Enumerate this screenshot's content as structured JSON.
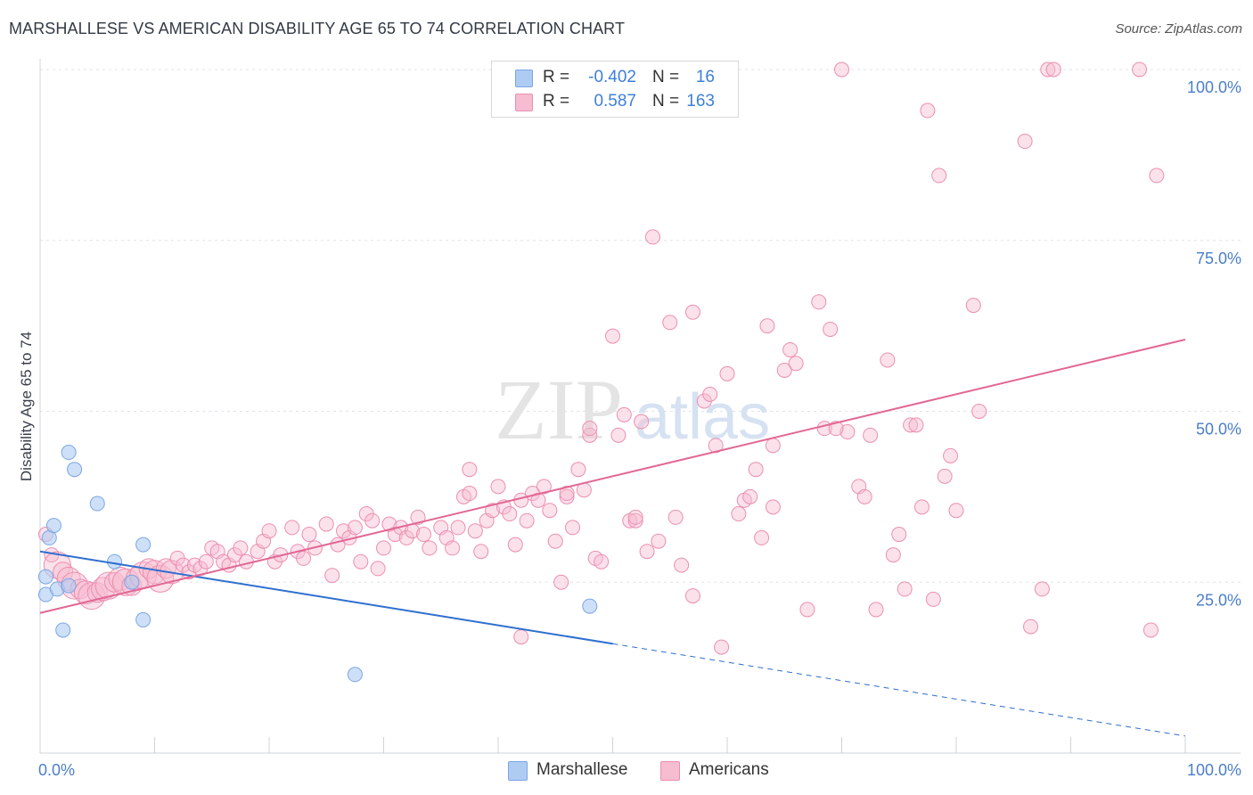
{
  "header": {
    "title": "MARSHALLESE VS AMERICAN DISABILITY AGE 65 TO 74 CORRELATION CHART",
    "source": "Source: ZipAtlas.com"
  },
  "watermark": {
    "zip": "ZIP",
    "atlas": "atlas"
  },
  "colors": {
    "marshallese_fill": "#aecbf2",
    "marshallese_stroke": "#7aa6e6",
    "marshallese_line": "#2f6fce",
    "americans_fill": "#f6bcd0",
    "americans_stroke": "#eb8fb0",
    "americans_line": "#e26795",
    "tick_label": "#4a7ec9",
    "grid": "#dfe3ea"
  },
  "legend": {
    "rows": [
      {
        "series": "Marshallese",
        "r_label": "R =",
        "r_value": "-0.402",
        "n_label": "N =",
        "n_value": "16"
      },
      {
        "series": "Americans",
        "r_label": "R =",
        "r_value": "0.587",
        "n_label": "N =",
        "n_value": "163"
      }
    ]
  },
  "bottom_legend": [
    "Marshallese",
    "Americans"
  ],
  "chart_data": {
    "type": "scatter",
    "title": "MARSHALLESE VS AMERICAN DISABILITY AGE 65 TO 74 CORRELATION CHART",
    "xlabel": "",
    "ylabel": "Disability Age 65 to 74",
    "xlim": [
      0,
      100
    ],
    "ylim": [
      0,
      100
    ],
    "x_tick_labels": [
      "0.0%",
      "100.0%"
    ],
    "y_tick_labels": [
      "25.0%",
      "50.0%",
      "75.0%",
      "100.0%"
    ],
    "y_ticks": [
      25,
      50,
      75,
      100
    ],
    "grid": true,
    "series": [
      {
        "name": "Marshallese",
        "r": -0.402,
        "n": 16,
        "trend": {
          "x0": 0,
          "y0": 29.5,
          "x1": 50,
          "y1": 16.0,
          "dashed_to_x": 100,
          "dashed_to_y": 2.5
        },
        "points": [
          [
            0.5,
            25.8
          ],
          [
            0.5,
            23.2
          ],
          [
            0.8,
            31.5
          ],
          [
            1.2,
            33.3
          ],
          [
            1.5,
            24.0
          ],
          [
            2.0,
            18.0
          ],
          [
            2.5,
            44.0
          ],
          [
            3.0,
            41.5
          ],
          [
            5.0,
            36.5
          ],
          [
            6.5,
            28.0
          ],
          [
            9.0,
            30.5
          ],
          [
            9.0,
            19.5
          ],
          [
            2.5,
            24.5
          ],
          [
            8.0,
            25.0
          ],
          [
            27.5,
            11.5
          ],
          [
            48.0,
            21.5
          ]
        ]
      },
      {
        "name": "Americans",
        "r": 0.587,
        "n": 163,
        "trend": {
          "x0": 0,
          "y0": 20.5,
          "x1": 100,
          "y1": 60.5
        },
        "points": [
          [
            0.5,
            32.0
          ],
          [
            1.0,
            29.0
          ],
          [
            1.5,
            27.5
          ],
          [
            2.0,
            26.5
          ],
          [
            2.5,
            25.5
          ],
          [
            3.0,
            24.5
          ],
          [
            3.5,
            24.0
          ],
          [
            4.0,
            23.5
          ],
          [
            4.5,
            23.0
          ],
          [
            5.0,
            23.5
          ],
          [
            5.5,
            24.0
          ],
          [
            6.0,
            24.5
          ],
          [
            6.5,
            25.0
          ],
          [
            7.0,
            25.5
          ],
          [
            7.5,
            25.0
          ],
          [
            8.0,
            24.5
          ],
          [
            8.5,
            25.5
          ],
          [
            9.0,
            26.0
          ],
          [
            9.5,
            27.0
          ],
          [
            10.0,
            26.5
          ],
          [
            10.5,
            25.5
          ],
          [
            11.0,
            27.0
          ],
          [
            11.5,
            26.5
          ],
          [
            12.0,
            28.5
          ],
          [
            12.5,
            27.5
          ],
          [
            13.0,
            26.5
          ],
          [
            13.5,
            27.5
          ],
          [
            14.0,
            27.0
          ],
          [
            14.5,
            28.0
          ],
          [
            15.0,
            30.0
          ],
          [
            15.5,
            29.5
          ],
          [
            16.0,
            28.0
          ],
          [
            16.5,
            27.5
          ],
          [
            17.0,
            29.0
          ],
          [
            17.5,
            30.0
          ],
          [
            18.0,
            28.0
          ],
          [
            19.0,
            29.5
          ],
          [
            19.5,
            31.0
          ],
          [
            20.0,
            32.5
          ],
          [
            20.5,
            28.0
          ],
          [
            21.0,
            29.0
          ],
          [
            22.0,
            33.0
          ],
          [
            22.5,
            29.5
          ],
          [
            23.0,
            28.5
          ],
          [
            23.5,
            32.0
          ],
          [
            24.0,
            30.0
          ],
          [
            25.0,
            33.5
          ],
          [
            25.5,
            26.0
          ],
          [
            26.0,
            30.5
          ],
          [
            26.5,
            32.5
          ],
          [
            27.0,
            31.5
          ],
          [
            27.5,
            33.0
          ],
          [
            28.0,
            28.0
          ],
          [
            28.5,
            35.0
          ],
          [
            29.0,
            34.0
          ],
          [
            29.5,
            27.0
          ],
          [
            30.0,
            30.0
          ],
          [
            30.5,
            33.5
          ],
          [
            31.0,
            32.0
          ],
          [
            31.5,
            33.0
          ],
          [
            32.0,
            31.5
          ],
          [
            32.5,
            32.5
          ],
          [
            33.0,
            34.5
          ],
          [
            33.5,
            32.0
          ],
          [
            34.0,
            30.0
          ],
          [
            35.0,
            33.0
          ],
          [
            35.5,
            31.5
          ],
          [
            36.0,
            30.0
          ],
          [
            36.5,
            33.0
          ],
          [
            37.0,
            37.5
          ],
          [
            37.5,
            38.0
          ],
          [
            38.0,
            32.5
          ],
          [
            38.5,
            29.5
          ],
          [
            39.0,
            34.0
          ],
          [
            39.5,
            35.5
          ],
          [
            40.0,
            39.0
          ],
          [
            40.5,
            36.0
          ],
          [
            41.0,
            35.0
          ],
          [
            41.5,
            30.5
          ],
          [
            42.0,
            37.0
          ],
          [
            42.5,
            34.0
          ],
          [
            43.0,
            38.0
          ],
          [
            43.5,
            37.0
          ],
          [
            44.0,
            39.0
          ],
          [
            44.5,
            35.5
          ],
          [
            45.0,
            31.0
          ],
          [
            45.5,
            25.0
          ],
          [
            46.0,
            37.5
          ],
          [
            46.5,
            33.0
          ],
          [
            47.0,
            41.5
          ],
          [
            47.5,
            38.5
          ],
          [
            48.0,
            46.5
          ],
          [
            48.5,
            28.5
          ],
          [
            49.0,
            28.0
          ],
          [
            50.0,
            61.0
          ],
          [
            51.0,
            49.5
          ],
          [
            51.5,
            34.0
          ],
          [
            52.0,
            34.0
          ],
          [
            52.5,
            48.5
          ],
          [
            53.0,
            29.5
          ],
          [
            53.5,
            75.5
          ],
          [
            54.0,
            31.0
          ],
          [
            55.0,
            63.0
          ],
          [
            55.5,
            34.5
          ],
          [
            56.0,
            27.5
          ],
          [
            57.0,
            64.5
          ],
          [
            58.0,
            51.5
          ],
          [
            58.5,
            52.5
          ],
          [
            59.0,
            45.0
          ],
          [
            60.0,
            55.5
          ],
          [
            61.0,
            35.0
          ],
          [
            61.5,
            37.0
          ],
          [
            62.0,
            37.5
          ],
          [
            62.5,
            41.5
          ],
          [
            63.0,
            31.5
          ],
          [
            63.5,
            62.5
          ],
          [
            64.0,
            36.0
          ],
          [
            65.0,
            56.0
          ],
          [
            65.5,
            59.0
          ],
          [
            66.0,
            57.0
          ],
          [
            67.0,
            21.0
          ],
          [
            68.0,
            66.0
          ],
          [
            68.5,
            47.5
          ],
          [
            69.0,
            62.0
          ],
          [
            70.0,
            100.0
          ],
          [
            70.5,
            47.0
          ],
          [
            71.5,
            39.0
          ],
          [
            72.0,
            37.5
          ],
          [
            72.5,
            46.5
          ],
          [
            73.0,
            21.0
          ],
          [
            74.0,
            57.5
          ],
          [
            74.5,
            29.0
          ],
          [
            75.0,
            32.0
          ],
          [
            75.5,
            24.0
          ],
          [
            76.0,
            48.0
          ],
          [
            77.0,
            36.0
          ],
          [
            77.5,
            94.0
          ],
          [
            78.0,
            22.5
          ],
          [
            78.5,
            84.5
          ],
          [
            79.0,
            40.5
          ],
          [
            79.5,
            43.5
          ],
          [
            80.0,
            35.5
          ],
          [
            81.5,
            65.5
          ],
          [
            82.0,
            50.0
          ],
          [
            86.0,
            89.5
          ],
          [
            86.5,
            18.5
          ],
          [
            87.5,
            24.0
          ],
          [
            88.0,
            100.0
          ],
          [
            88.5,
            100.0
          ],
          [
            96.0,
            100.0
          ],
          [
            97.0,
            18.0
          ],
          [
            97.5,
            84.5
          ],
          [
            57.0,
            23.0
          ],
          [
            42.0,
            17.0
          ],
          [
            59.5,
            15.5
          ],
          [
            37.5,
            41.5
          ],
          [
            46.0,
            38.0
          ],
          [
            50.5,
            46.5
          ],
          [
            52.0,
            34.5
          ],
          [
            48.0,
            47.5
          ],
          [
            76.5,
            48.0
          ],
          [
            69.5,
            47.5
          ],
          [
            64.0,
            45.0
          ]
        ]
      }
    ]
  }
}
